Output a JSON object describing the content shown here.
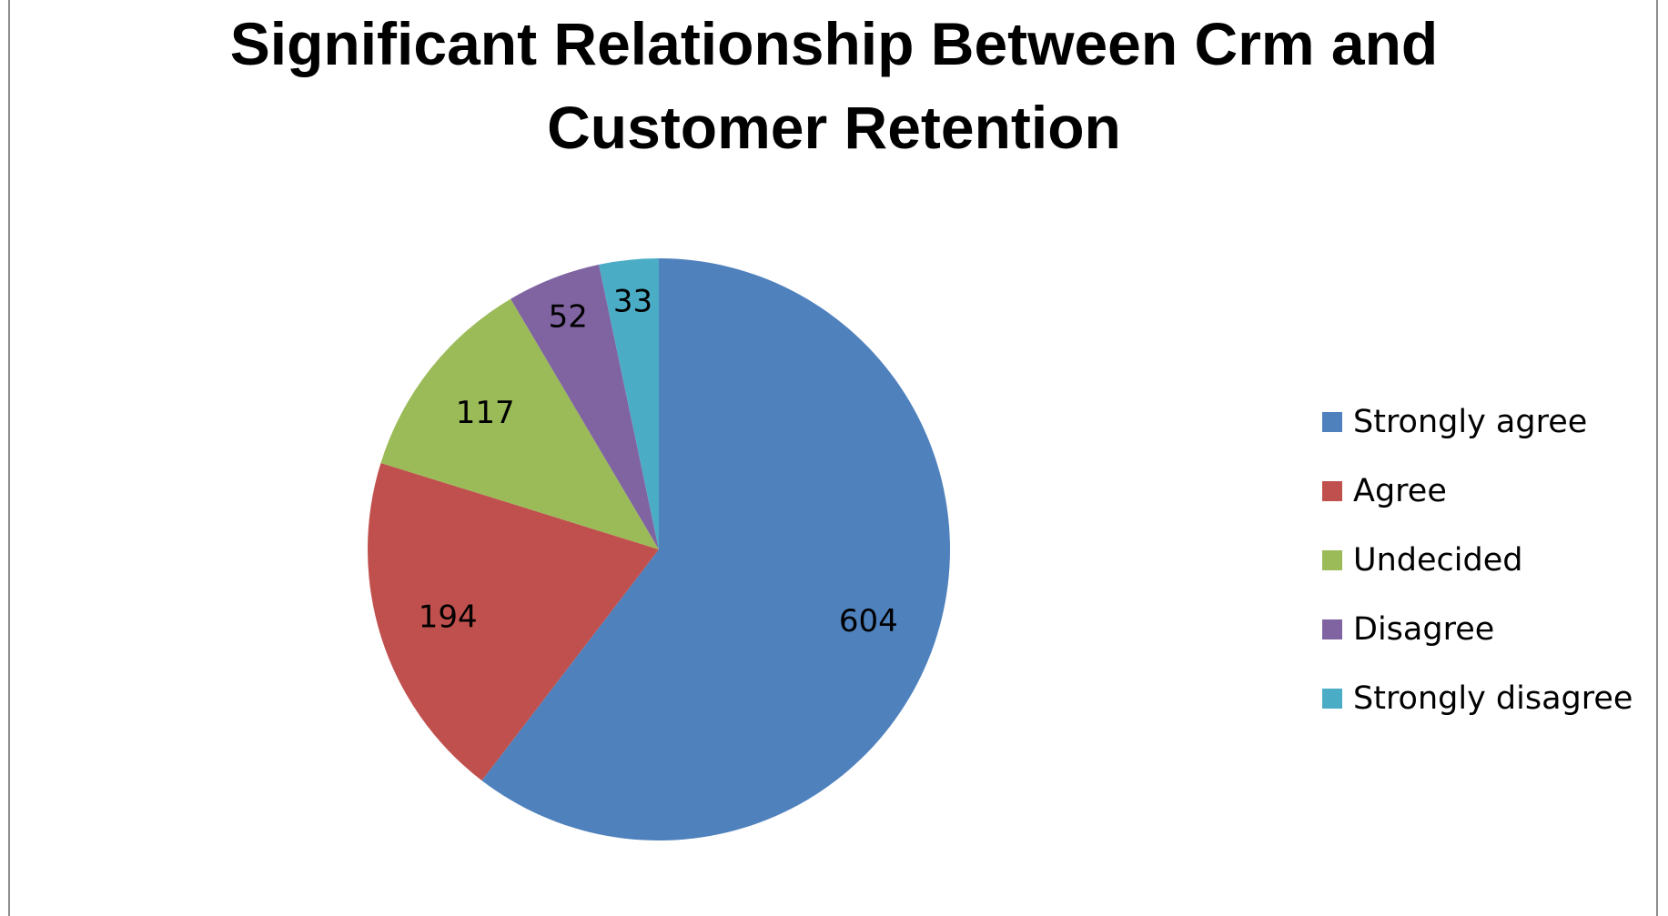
{
  "chart_data": {
    "type": "pie",
    "title": "Significant Relationship Between Crm and Customer Retention",
    "title_lines": [
      "Significant Relationship Between Crm and",
      "Customer Retention"
    ],
    "categories": [
      "Strongly agree",
      "Agree",
      "Undecided",
      "Disagree",
      "Strongly disagree"
    ],
    "values": [
      604,
      194,
      117,
      52,
      33
    ],
    "colors": [
      "#4F81BD",
      "#C0504D",
      "#9BBB59",
      "#8064A2",
      "#4BACC6"
    ],
    "start_angle_deg": 0,
    "direction": "clockwise",
    "legend_position": "right",
    "data_labels": true
  }
}
